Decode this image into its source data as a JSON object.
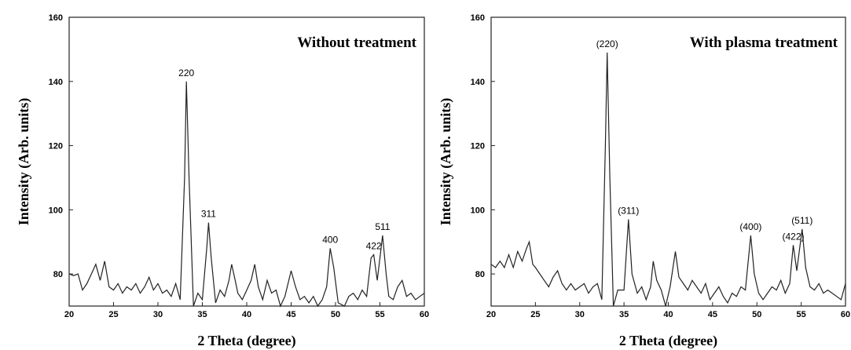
{
  "chart_data": [
    {
      "type": "line",
      "title": "Without treatment",
      "x_label": "2 Theta (degree)",
      "y_label": "Intensity (Arb. units)",
      "xlim": [
        20,
        60
      ],
      "xticks": [
        20,
        25,
        30,
        35,
        40,
        45,
        50,
        55,
        60
      ],
      "ylim": [
        70,
        160
      ],
      "yticks": [
        80,
        100,
        120,
        140,
        160
      ],
      "color": "#222222",
      "x": [
        20,
        20.5,
        21,
        21.5,
        22,
        22.5,
        23,
        23.5,
        24,
        24.5,
        25,
        25.5,
        26,
        26.5,
        27,
        27.5,
        28,
        28.5,
        29,
        29.5,
        30,
        30.5,
        31,
        31.5,
        32,
        32.5,
        33,
        33.2,
        33.5,
        34,
        34.5,
        35,
        35.5,
        35.7,
        36,
        36.5,
        37,
        37.5,
        38,
        38.3,
        38.7,
        39,
        39.5,
        40,
        40.5,
        40.9,
        41.3,
        41.8,
        42.3,
        42.8,
        43.3,
        43.8,
        44.3,
        45,
        45.5,
        46,
        46.5,
        47,
        47.5,
        48,
        48.5,
        49,
        49.4,
        49.8,
        50.3,
        51,
        51.5,
        52,
        52.5,
        53,
        53.5,
        54,
        54.3,
        54.7,
        55.3,
        55.7,
        56,
        56.5,
        57,
        57.5,
        58,
        58.5,
        59,
        59.5,
        60
      ],
      "values": [
        80,
        79.5,
        80,
        75,
        77,
        80,
        83,
        78,
        84,
        76,
        75,
        77,
        74,
        76,
        75,
        77,
        74,
        76,
        79,
        75,
        77,
        74,
        75,
        73,
        77,
        72,
        110,
        140,
        110,
        70,
        74,
        72,
        88,
        96,
        85,
        71,
        75,
        73,
        78,
        83,
        78,
        74,
        72,
        75,
        78,
        83,
        76,
        72,
        78,
        74,
        75,
        70,
        73,
        81,
        76,
        72,
        73,
        71,
        73,
        70,
        72,
        76,
        88,
        82,
        71,
        70,
        73,
        74,
        72,
        75,
        73,
        85,
        86,
        78,
        92,
        80,
        73,
        72,
        76,
        78,
        73,
        74,
        72,
        73,
        74
      ],
      "annotations": [
        {
          "text": "220",
          "x": 33.2,
          "y": 140
        },
        {
          "text": "311",
          "x": 35.7,
          "y": 96
        },
        {
          "text": "400",
          "x": 49.4,
          "y": 88
        },
        {
          "text": "422",
          "x": 54.3,
          "y": 86
        },
        {
          "text": "511",
          "x": 55.3,
          "y": 92
        }
      ]
    },
    {
      "type": "line",
      "title": "With plasma treatment",
      "x_label": "2 Theta (degree)",
      "y_label": "Intensity (Arb. units)",
      "xlim": [
        20,
        60
      ],
      "xticks": [
        20,
        25,
        30,
        35,
        40,
        45,
        50,
        55,
        60
      ],
      "ylim": [
        70,
        160
      ],
      "yticks": [
        80,
        100,
        120,
        140,
        160
      ],
      "color": "#222222",
      "x": [
        20,
        20.5,
        21,
        21.5,
        22,
        22.5,
        23,
        23.5,
        24,
        24.3,
        24.7,
        25,
        25.5,
        26,
        26.5,
        27,
        27.5,
        28,
        28.5,
        29,
        29.5,
        30,
        30.5,
        31,
        31.5,
        32,
        32.5,
        32.9,
        33.1,
        33.4,
        33.8,
        34.3,
        35,
        35.5,
        35.9,
        36.5,
        37,
        37.5,
        38,
        38.3,
        38.7,
        39.2,
        39.7,
        40.2,
        40.8,
        41.2,
        41.7,
        42.2,
        42.7,
        43.2,
        43.7,
        44.2,
        44.7,
        45.2,
        45.7,
        46.2,
        46.7,
        47.2,
        47.7,
        48.2,
        48.7,
        49.3,
        49.7,
        50.2,
        50.7,
        51.2,
        51.7,
        52.2,
        52.7,
        53.2,
        53.7,
        54.1,
        54.5,
        55.1,
        55.5,
        56,
        56.5,
        57,
        57.5,
        58,
        58.5,
        59,
        59.5,
        60
      ],
      "values": [
        83,
        82,
        84,
        82,
        86,
        82,
        87,
        84,
        88,
        90,
        83,
        82,
        80,
        78,
        76,
        79,
        81,
        77,
        75,
        77,
        75,
        76,
        77,
        74,
        76,
        77,
        72,
        120,
        149,
        110,
        70,
        75,
        75,
        97,
        80,
        74,
        76,
        72,
        76,
        84,
        78,
        75,
        70,
        76,
        87,
        79,
        77,
        75,
        78,
        76,
        74,
        77,
        72,
        74,
        76,
        73,
        71,
        74,
        73,
        76,
        75,
        92,
        80,
        74,
        72,
        74,
        76,
        75,
        78,
        74,
        77,
        89,
        81,
        94,
        82,
        76,
        75,
        77,
        74,
        75,
        74,
        73,
        72,
        77
      ],
      "annotations": [
        {
          "text": "(220)",
          "x": 33.1,
          "y": 149
        },
        {
          "text": "(311)",
          "x": 35.5,
          "y": 97
        },
        {
          "text": "(400)",
          "x": 49.3,
          "y": 92
        },
        {
          "text": "(422)",
          "x": 54.1,
          "y": 89
        },
        {
          "text": "(511)",
          "x": 55.1,
          "y": 94
        }
      ]
    }
  ]
}
